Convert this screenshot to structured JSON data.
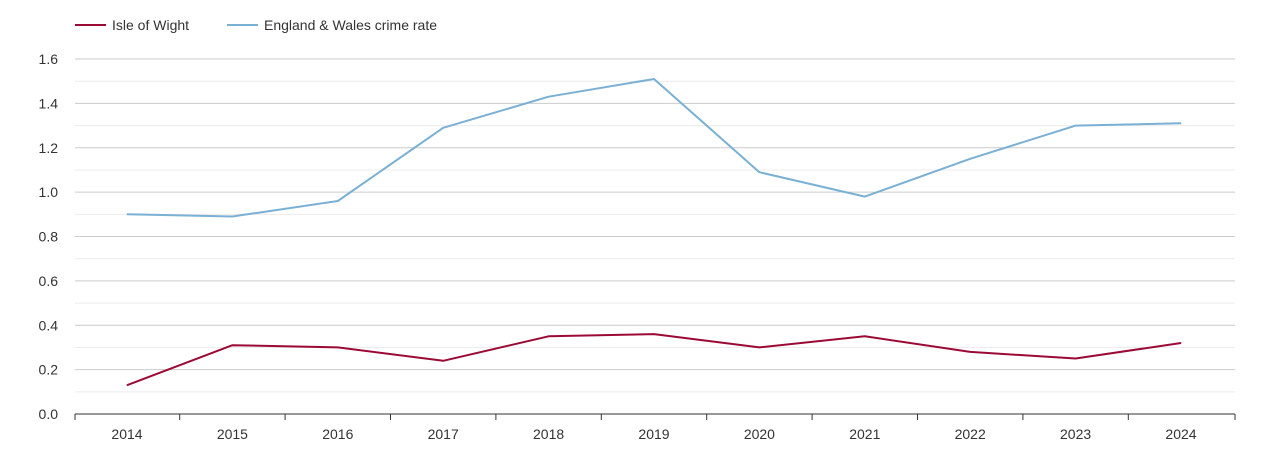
{
  "chart_data": {
    "type": "line",
    "title": "",
    "xlabel": "",
    "ylabel": "",
    "x": [
      "2014",
      "2015",
      "2016",
      "2017",
      "2018",
      "2019",
      "2020",
      "2021",
      "2022",
      "2023",
      "2024"
    ],
    "ylim": [
      0,
      1.6
    ],
    "yticks": [
      "0.0",
      "0.2",
      "0.4",
      "0.6",
      "0.8",
      "1.0",
      "1.2",
      "1.4",
      "1.6"
    ],
    "grid": true,
    "legend_position": "top-left",
    "series": [
      {
        "name": "Isle of Wight",
        "color": "#9b0a35",
        "values": [
          0.13,
          0.31,
          0.3,
          0.24,
          0.35,
          0.36,
          0.3,
          0.35,
          0.28,
          0.25,
          0.32
        ]
      },
      {
        "name": "England & Wales crime rate",
        "color": "#7ab0d4",
        "values": [
          0.9,
          0.89,
          0.96,
          1.29,
          1.43,
          1.51,
          1.09,
          0.98,
          1.15,
          1.3,
          1.31
        ]
      }
    ]
  }
}
